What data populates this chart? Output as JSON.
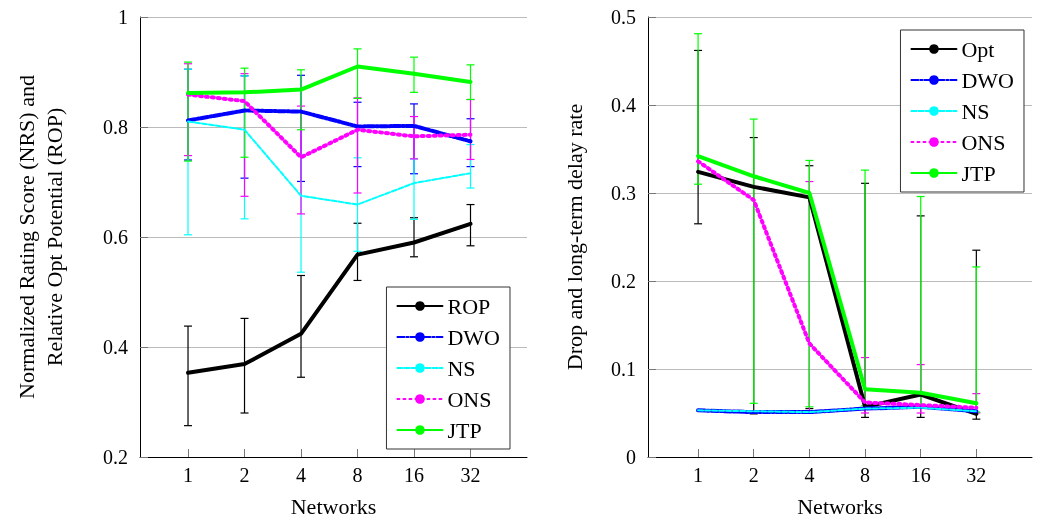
{
  "chart_data": [
    {
      "type": "line",
      "xlabel": "Networks",
      "ylabel": "Normalized Rating Score (NRS) and\nRelative Opt Potential (ROP)",
      "categories": [
        "1",
        "2",
        "4",
        "8",
        "16",
        "32"
      ],
      "ylim": [
        0.2,
        1
      ],
      "yticks": [
        0.2,
        0.4,
        0.6,
        0.8,
        1
      ],
      "grid": "y",
      "legend": "bottom right",
      "marker": "none",
      "series": [
        {
          "name": "ROP",
          "color": "#000000",
          "line_style": "solid",
          "values": [
            0.353,
            0.369,
            0.424,
            0.568,
            0.59,
            0.624
          ],
          "errors": [
            [
              0.257,
              0.438
            ],
            [
              0.28,
              0.452
            ],
            [
              0.345,
              0.53
            ],
            [
              0.521,
              0.625
            ],
            [
              0.564,
              0.635
            ],
            [
              0.584,
              0.659
            ]
          ]
        },
        {
          "name": "DWO",
          "color": "#0000ff",
          "line_style": "dashdot",
          "values": [
            0.812,
            0.83,
            0.828,
            0.801,
            0.802,
            0.774
          ],
          "errors": [
            [
              0.74,
              0.905
            ],
            [
              0.707,
              0.893
            ],
            [
              0.701,
              0.894
            ],
            [
              0.728,
              0.845
            ],
            [
              0.715,
              0.842
            ],
            [
              0.728,
              0.815
            ]
          ]
        },
        {
          "name": "NS",
          "color": "#00ffff",
          "line_style": "dashed",
          "values": [
            0.81,
            0.795,
            0.675,
            0.659,
            0.698,
            0.716
          ],
          "errors": [
            [
              0.604,
              0.905
            ],
            [
              0.633,
              0.893
            ],
            [
              0.536,
              0.75
            ],
            [
              0.574,
              0.744
            ],
            [
              0.632,
              0.742
            ],
            [
              0.689,
              0.768
            ]
          ]
        },
        {
          "name": "ONS",
          "color": "#ff00ff",
          "line_style": "dotted",
          "values": [
            0.859,
            0.847,
            0.745,
            0.795,
            0.783,
            0.786
          ],
          "errors": [
            [
              0.748,
              0.915
            ],
            [
              0.674,
              0.897
            ],
            [
              0.642,
              0.838
            ],
            [
              0.68,
              0.853
            ],
            [
              0.742,
              0.819
            ],
            [
              0.741,
              0.85
            ]
          ]
        },
        {
          "name": "JTP",
          "color": "#00ff00",
          "line_style": "solid",
          "values": [
            0.862,
            0.863,
            0.868,
            0.91,
            0.897,
            0.882
          ],
          "errors": [
            [
              0.738,
              0.918
            ],
            [
              0.745,
              0.907
            ],
            [
              0.795,
              0.904
            ],
            [
              0.852,
              0.942
            ],
            [
              0.863,
              0.927
            ],
            [
              0.85,
              0.913
            ]
          ]
        }
      ]
    },
    {
      "type": "line",
      "xlabel": "Networks",
      "ylabel": "Drop and long-term delay rate",
      "categories": [
        "1",
        "2",
        "4",
        "8",
        "16",
        "32"
      ],
      "ylim": [
        0,
        0.5
      ],
      "yticks": [
        0,
        0.1,
        0.2,
        0.3,
        0.4,
        0.5
      ],
      "grid": "y",
      "legend": "top right",
      "marker": "none",
      "series": [
        {
          "name": "Opt",
          "color": "#000000",
          "line_style": "solid",
          "values": [
            0.324,
            0.307,
            0.295,
            0.057,
            0.071,
            0.049
          ],
          "errors": [
            [
              0.265,
              0.462
            ],
            [
              0.049,
              0.363
            ],
            [
              0.055,
              0.331
            ],
            [
              0.045,
              0.311
            ],
            [
              0.045,
              0.274
            ],
            [
              0.043,
              0.235
            ]
          ]
        },
        {
          "name": "DWO",
          "color": "#0000ff",
          "line_style": "dashdot",
          "values": [
            0.053,
            0.051,
            0.051,
            0.055,
            0.057,
            0.052
          ]
        },
        {
          "name": "NS",
          "color": "#00ffff",
          "line_style": "dashed",
          "values": [
            0.053,
            0.052,
            0.051,
            0.055,
            0.056,
            0.052
          ]
        },
        {
          "name": "ONS",
          "color": "#ff00ff",
          "line_style": "dotted",
          "values": [
            0.336,
            0.292,
            0.129,
            0.062,
            0.059,
            0.056
          ],
          "errors": [
            null,
            null,
            [
              0.05,
              0.313
            ],
            [
              0.05,
              0.113
            ],
            [
              0.05,
              0.105
            ],
            [
              0.05,
              0.072
            ]
          ]
        },
        {
          "name": "JTP",
          "color": "#00ff00",
          "line_style": "solid",
          "values": [
            0.342,
            0.319,
            0.3,
            0.077,
            0.073,
            0.061
          ],
          "errors": [
            [
              0.31,
              0.481
            ],
            [
              0.061,
              0.384
            ],
            [
              0.057,
              0.337
            ],
            [
              0.058,
              0.326
            ],
            [
              0.058,
              0.296
            ],
            [
              0.051,
              0.216
            ]
          ]
        }
      ]
    }
  ]
}
